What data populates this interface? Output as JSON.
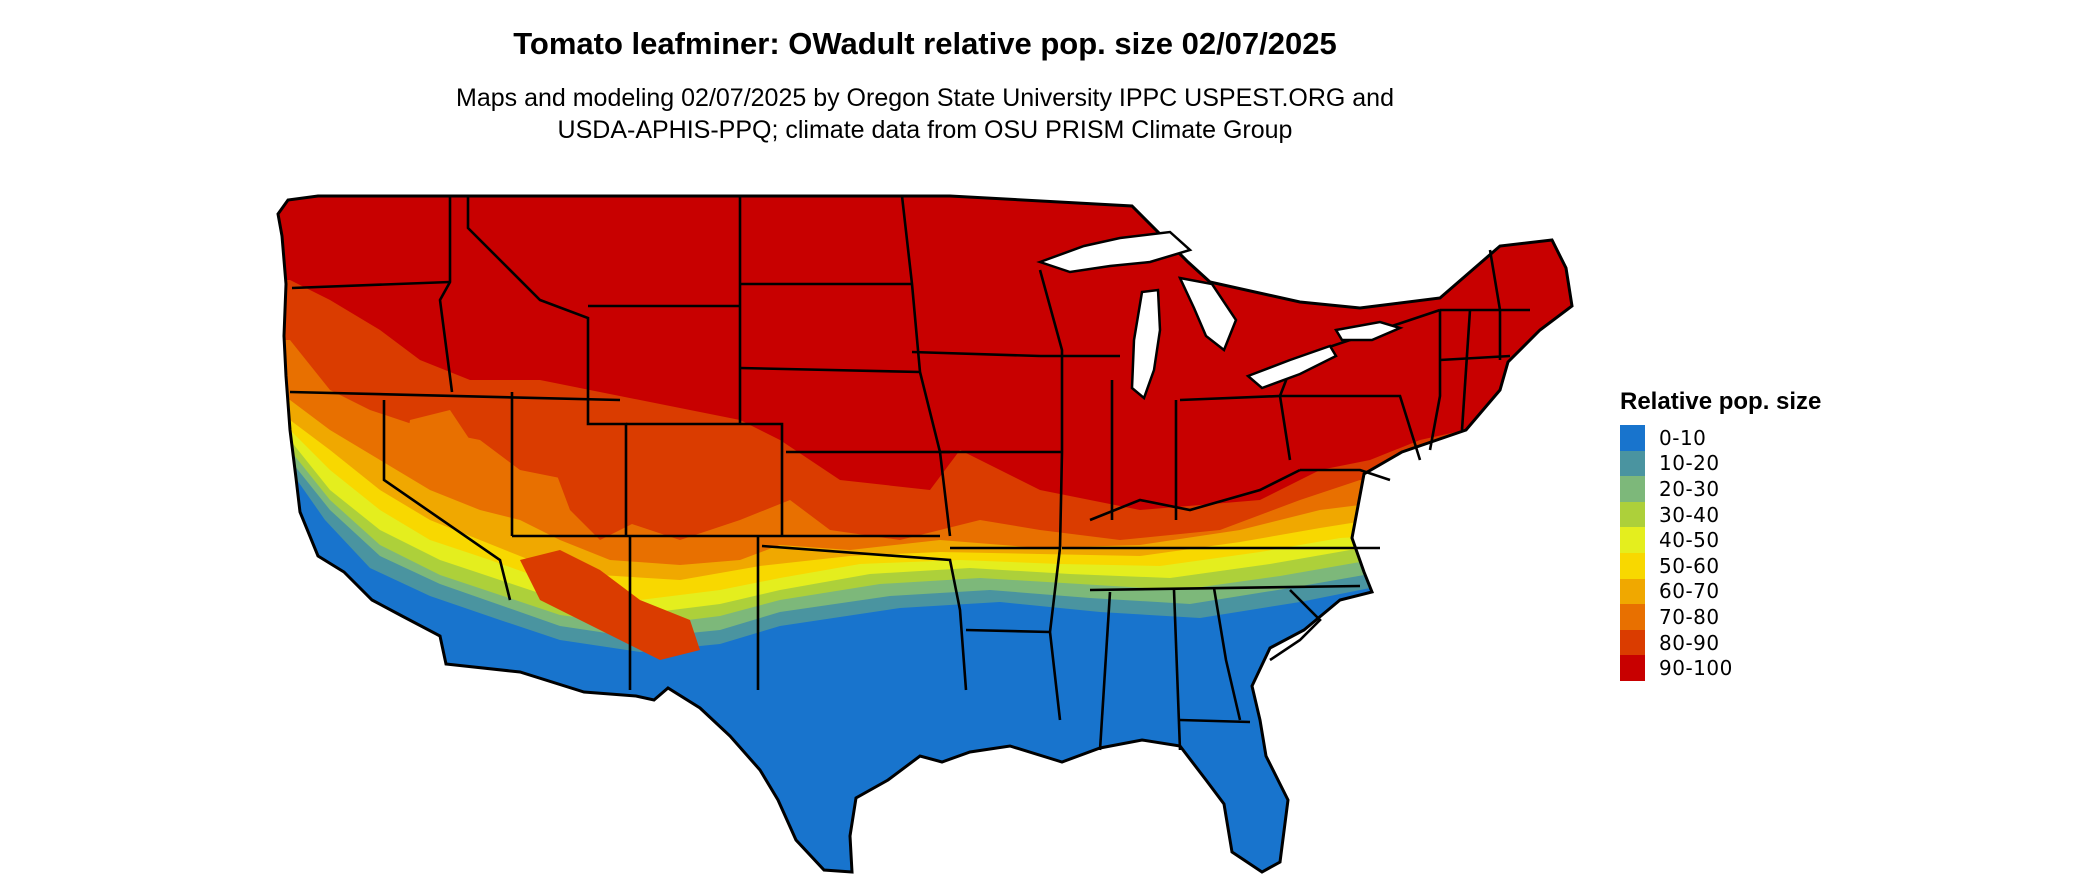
{
  "title": "Tomato leafminer: OWadult relative pop. size 02/07/2025",
  "subtitle_lines": [
    "Maps and modeling 02/07/2025 by Oregon State University IPPC USPEST.ORG and",
    "USDA-APHIS-PPQ; climate data from OSU PRISM Climate Group"
  ],
  "legend": {
    "title": "Relative pop. size",
    "items": [
      {
        "label": "0-10",
        "color": "#1874CD"
      },
      {
        "label": "10-20",
        "color": "#4A94A0"
      },
      {
        "label": "20-30",
        "color": "#7DB87A"
      },
      {
        "label": "30-40",
        "color": "#ADD03A"
      },
      {
        "label": "40-50",
        "color": "#E4EE1E"
      },
      {
        "label": "50-60",
        "color": "#F8D800"
      },
      {
        "label": "60-70",
        "color": "#F0A800"
      },
      {
        "label": "70-80",
        "color": "#E87000"
      },
      {
        "label": "80-90",
        "color": "#DA3C00"
      },
      {
        "label": "90-100",
        "color": "#C80000"
      }
    ]
  }
}
